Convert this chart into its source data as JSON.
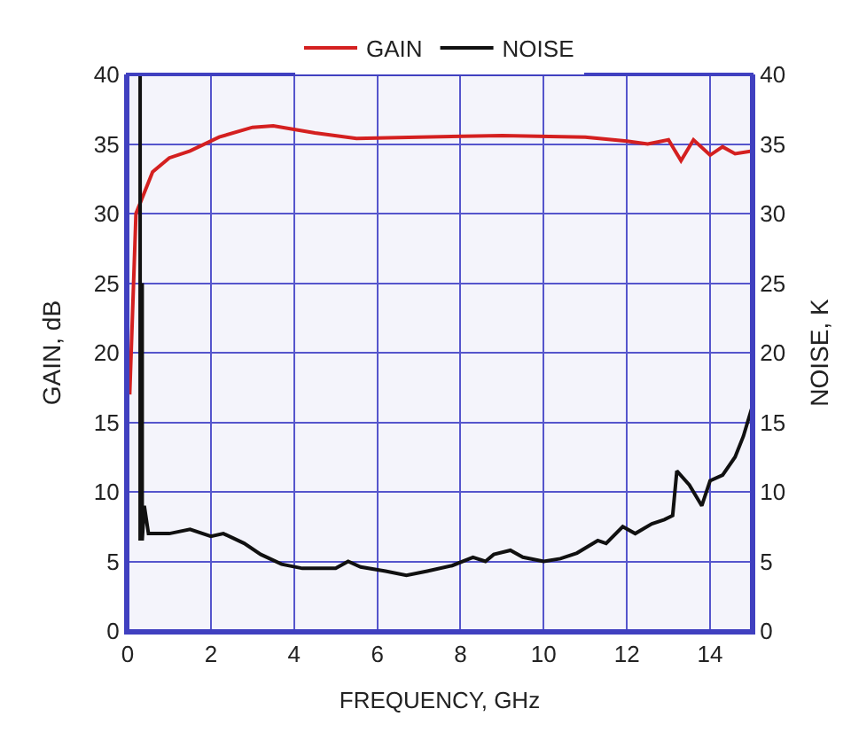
{
  "chart_data": {
    "type": "line",
    "xlabel": "FREQUENCY, GHz",
    "ylabel": "GAIN, dB",
    "y2label": "NOISE, K",
    "xlim": [
      0,
      15
    ],
    "xticks": [
      0,
      2,
      4,
      6,
      8,
      10,
      12,
      14
    ],
    "ylim": [
      0,
      40
    ],
    "yticks": [
      0,
      5,
      10,
      15,
      20,
      25,
      30,
      35,
      40
    ],
    "y2lim": [
      0,
      40
    ],
    "y2ticks": [
      0,
      5,
      10,
      15,
      20,
      25,
      30,
      35,
      40
    ],
    "grid": true,
    "legend": "top",
    "marker": "none",
    "line_style": "solid",
    "series": [
      {
        "name": "GAIN",
        "color": "#d42020",
        "x": [
          0.05,
          0.2,
          0.4,
          0.6,
          1.0,
          1.5,
          2.2,
          3.0,
          3.5,
          4.5,
          5.5,
          7,
          9,
          11,
          12,
          12.5,
          13,
          13.3,
          13.6,
          14,
          14.3,
          14.6,
          15
        ],
        "values": [
          17,
          30,
          31.5,
          33,
          34,
          34.5,
          35.5,
          36.2,
          36.3,
          35.8,
          35.4,
          35.5,
          35.6,
          35.5,
          35.2,
          35,
          35.3,
          33.8,
          35.3,
          34.2,
          34.8,
          34.3,
          34.5
        ]
      },
      {
        "name": "NOISE",
        "color": "#111111",
        "axis": "y2",
        "x": [
          0.3,
          0.3,
          0.35,
          0.35,
          0.4,
          0.5,
          1,
          1.5,
          2,
          2.3,
          2.8,
          3.2,
          3.7,
          4.2,
          5,
          5.3,
          5.6,
          6.2,
          6.7,
          7.2,
          7.8,
          8.3,
          8.6,
          8.8,
          9.2,
          9.5,
          10,
          10.4,
          10.8,
          11.3,
          11.5,
          11.9,
          12.2,
          12.6,
          12.9,
          13.1,
          13.2,
          13.5,
          13.8,
          14,
          14.3,
          14.6,
          14.8,
          15
        ],
        "values": [
          40,
          6.5,
          25,
          6.5,
          9,
          7,
          7,
          7.3,
          6.8,
          7,
          6.3,
          5.5,
          4.8,
          4.5,
          4.5,
          5,
          4.6,
          4.3,
          4,
          4.3,
          4.7,
          5.3,
          5,
          5.5,
          5.8,
          5.3,
          5,
          5.2,
          5.6,
          6.5,
          6.3,
          7.5,
          7,
          7.7,
          8,
          8.3,
          11.5,
          10.5,
          9,
          10.8,
          11.2,
          12.5,
          14,
          16
        ]
      }
    ]
  }
}
